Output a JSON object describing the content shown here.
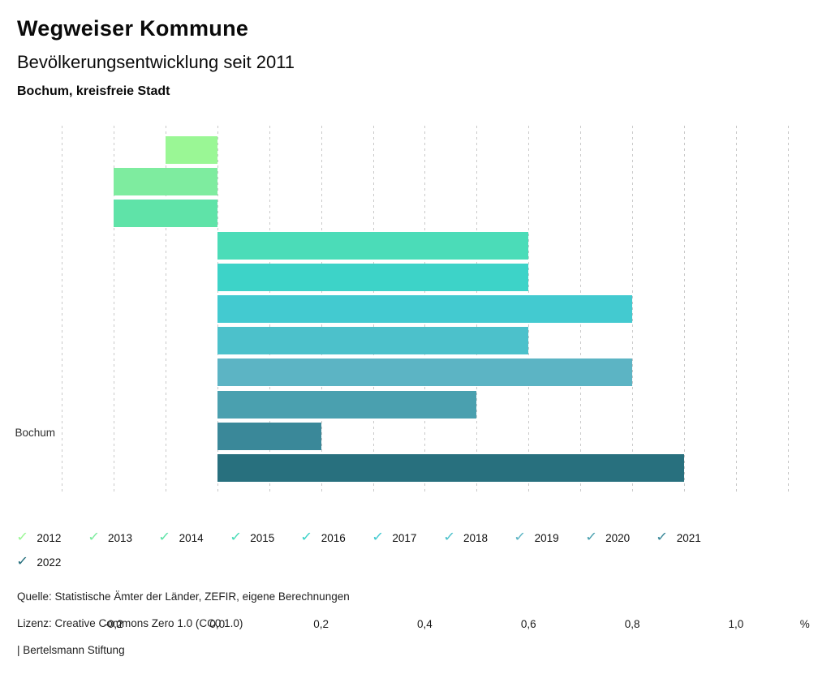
{
  "header": {
    "title": "Wegweiser Kommune",
    "subtitle": "Bevölkerungsentwicklung seit 2011",
    "region": "Bochum, kreisfreie Stadt"
  },
  "chart_data": {
    "type": "bar",
    "orientation": "horizontal",
    "title": "Bevölkerungsentwicklung seit 2011",
    "group_label": "Bochum",
    "unit": "%",
    "xlim": [
      -0.3,
      1.18
    ],
    "grid": "dotted-vertical",
    "legend_position": "bottom",
    "series": [
      {
        "name": "2012",
        "value": -0.1,
        "color": "#9af795"
      },
      {
        "name": "2013",
        "value": -0.2,
        "color": "#7eec9f"
      },
      {
        "name": "2014",
        "value": -0.2,
        "color": "#5fe3a8"
      },
      {
        "name": "2015",
        "value": 0.6,
        "color": "#4bdcb8"
      },
      {
        "name": "2016",
        "value": 0.6,
        "color": "#3dd3c8"
      },
      {
        "name": "2017",
        "value": 0.8,
        "color": "#43cad0"
      },
      {
        "name": "2018",
        "value": 0.6,
        "color": "#4cc1cb"
      },
      {
        "name": "2019",
        "value": 0.8,
        "color": "#5cb4c4"
      },
      {
        "name": "2020",
        "value": 0.5,
        "color": "#4aa0af"
      },
      {
        "name": "2021",
        "value": 0.2,
        "color": "#3a8899"
      },
      {
        "name": "2022",
        "value": 0.9,
        "color": "#28707e"
      }
    ],
    "gridline_values": [
      -0.3,
      -0.2,
      -0.1,
      0,
      0.1,
      0.2,
      0.3,
      0.4,
      0.5,
      0.6,
      0.7,
      0.8,
      0.9,
      1.0,
      1.1
    ],
    "tick_labels": [
      {
        "value": -0.2,
        "label": "-0,2"
      },
      {
        "value": 0.0,
        "label": "0,0"
      },
      {
        "value": 0.2,
        "label": "0,2"
      },
      {
        "value": 0.4,
        "label": "0,4"
      },
      {
        "value": 0.6,
        "label": "0,6"
      },
      {
        "value": 0.8,
        "label": "0,8"
      },
      {
        "value": 1.0,
        "label": "1,0"
      }
    ],
    "legend_check_glyph": "✓"
  },
  "footer": {
    "source": "Quelle: Statistische Ämter der Länder, ZEFIR, eigene Berechnungen",
    "license": "Lizenz: Creative Commons Zero 1.0 (CC0 1.0)",
    "attribution": "| Bertelsmann Stiftung"
  }
}
